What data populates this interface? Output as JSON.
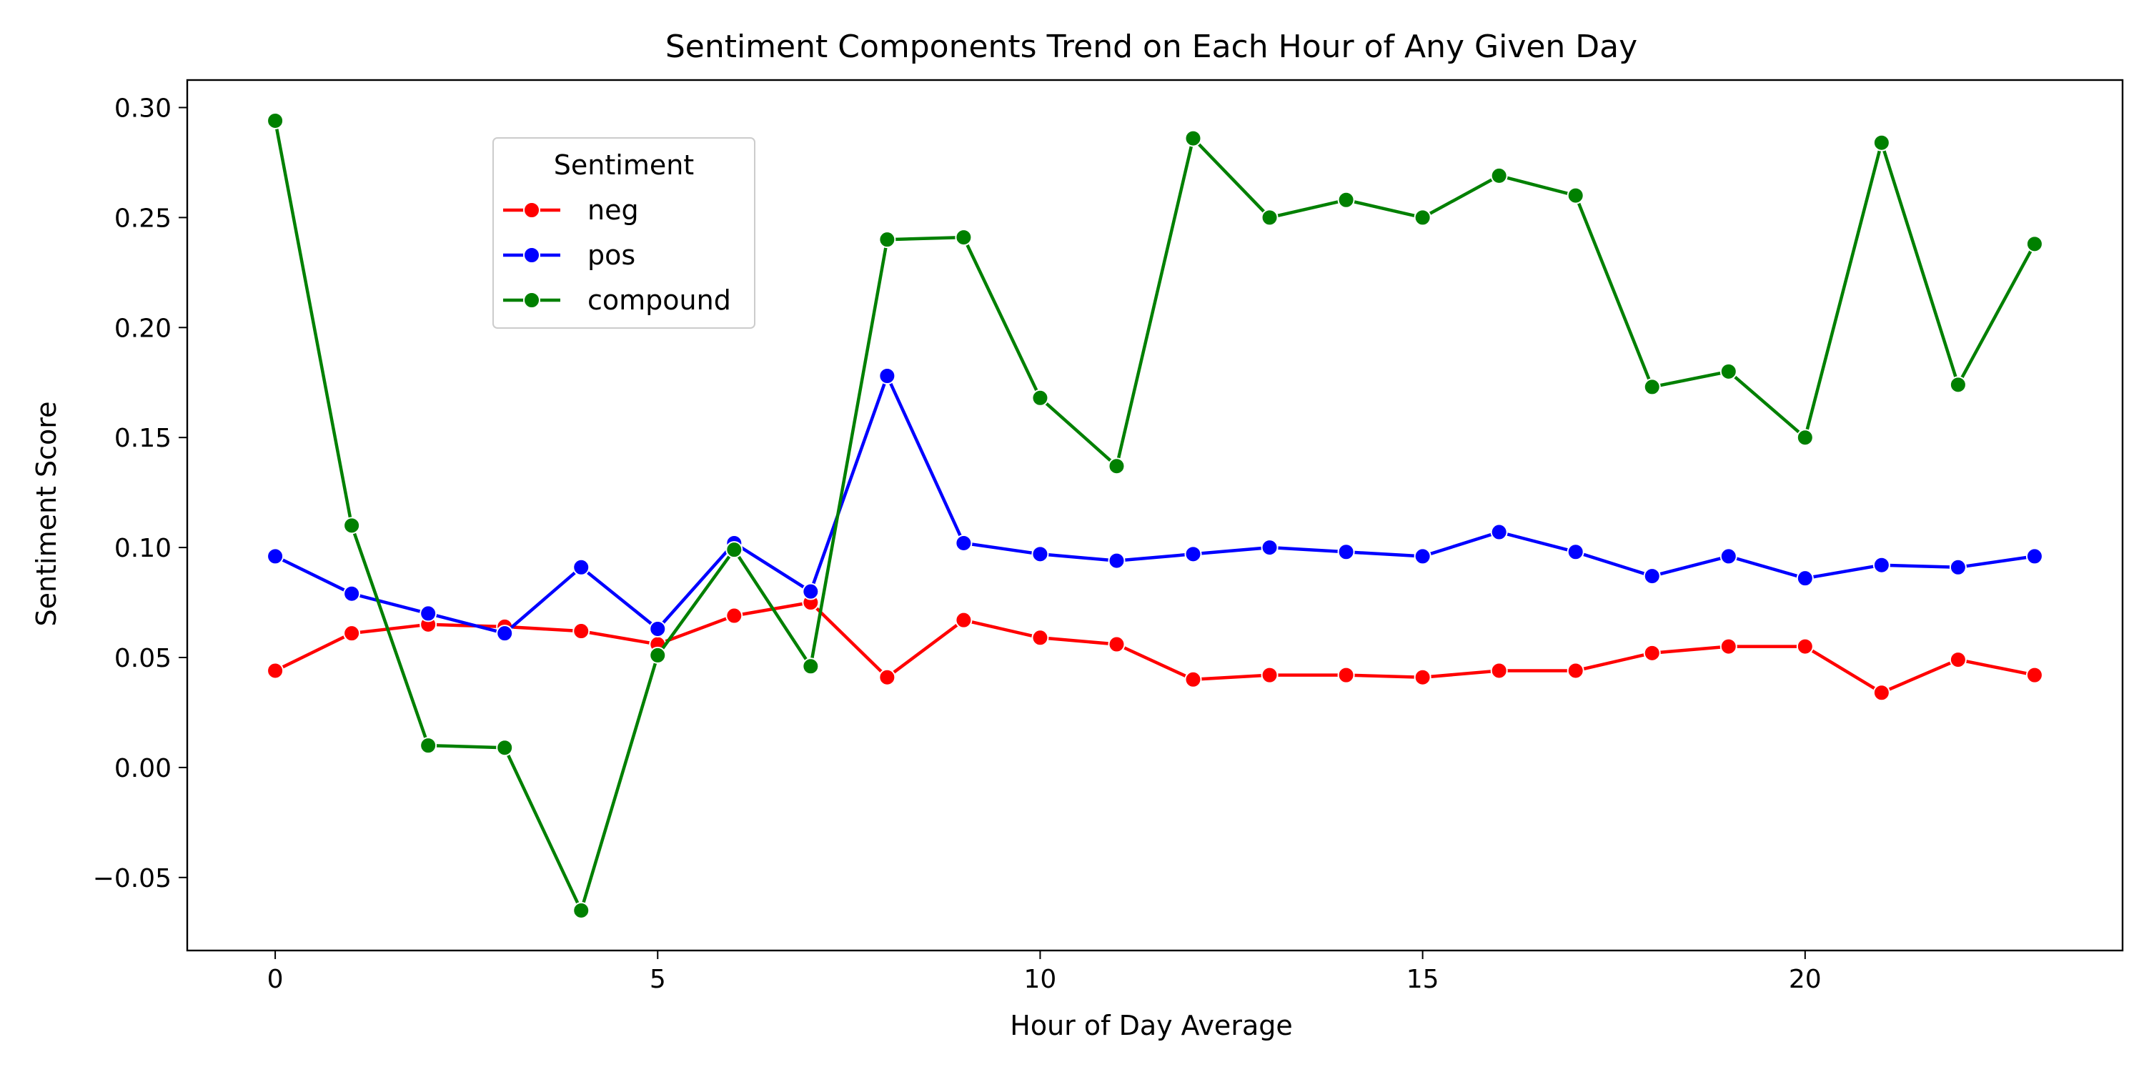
{
  "chart_data": {
    "type": "line",
    "title": "Sentiment Components Trend on Each Hour of Any Given Day",
    "xlabel": "Hour of Day Average",
    "ylabel": "Sentiment Score",
    "xlim": [
      -1.15,
      24.15
    ],
    "ylim": [
      -0.0832,
      0.3125
    ],
    "x_ticks": [
      0,
      5,
      10,
      15,
      20
    ],
    "x_tick_labels": [
      "0",
      "5",
      "10",
      "15",
      "20"
    ],
    "y_ticks": [
      -0.05,
      0.0,
      0.05,
      0.1,
      0.15,
      0.2,
      0.25,
      0.3
    ],
    "y_tick_labels": [
      "−0.05",
      "0.00",
      "0.05",
      "0.10",
      "0.15",
      "0.20",
      "0.25",
      "0.30"
    ],
    "grid": false,
    "legend": {
      "title": "Sentiment",
      "placement": "upper-left"
    },
    "x": [
      0,
      1,
      2,
      3,
      4,
      5,
      6,
      7,
      8,
      9,
      10,
      11,
      12,
      13,
      14,
      15,
      16,
      17,
      18,
      19,
      20,
      21,
      22,
      23
    ],
    "series": [
      {
        "name": "neg",
        "color": "#ff0000",
        "values": [
          0.044,
          0.061,
          0.065,
          0.064,
          0.062,
          0.056,
          0.069,
          0.075,
          0.041,
          0.067,
          0.059,
          0.056,
          0.04,
          0.042,
          0.042,
          0.041,
          0.044,
          0.044,
          0.052,
          0.055,
          0.055,
          0.034,
          0.049,
          0.042
        ]
      },
      {
        "name": "pos",
        "color": "#0000ff",
        "values": [
          0.096,
          0.079,
          0.07,
          0.061,
          0.091,
          0.063,
          0.102,
          0.08,
          0.178,
          0.102,
          0.097,
          0.094,
          0.097,
          0.1,
          0.098,
          0.096,
          0.107,
          0.098,
          0.087,
          0.096,
          0.086,
          0.092,
          0.091,
          0.096
        ]
      },
      {
        "name": "compound",
        "color": "#008000",
        "values": [
          0.294,
          0.11,
          0.01,
          0.009,
          -0.065,
          0.051,
          0.099,
          0.046,
          0.24,
          0.241,
          0.168,
          0.137,
          0.286,
          0.25,
          0.258,
          0.25,
          0.269,
          0.26,
          0.173,
          0.18,
          0.15,
          0.284,
          0.174,
          0.238
        ]
      }
    ]
  }
}
